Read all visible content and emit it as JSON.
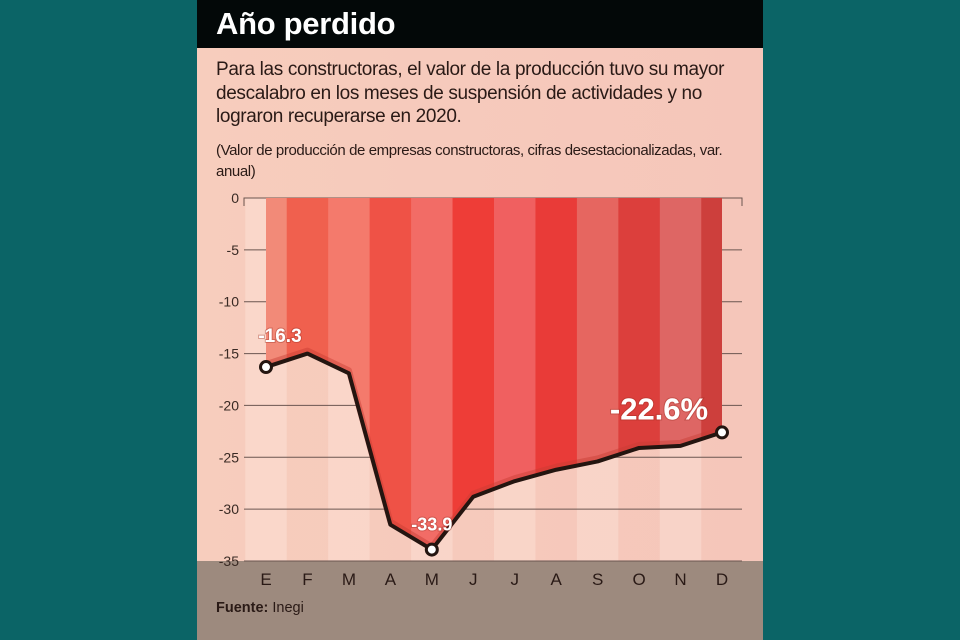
{
  "title": "Año perdido",
  "subtitle": "Para las constructoras, el valor de la producción tuvo su mayor descalabro en los meses de suspensión de actividades y no lograron recuperarse en 2020.",
  "note": "(Valor de producción de empresas constructoras, cifras desestacionalizadas, var. anual)",
  "source": {
    "label": "Fuente:",
    "value": "Inegi"
  },
  "colors": {
    "background": "#0b6466",
    "title_bar": "#030808",
    "line": "#241510",
    "area_red": "#ee3d37",
    "footer": "#9d8a7e"
  },
  "chart_data": {
    "type": "area",
    "title": "Año perdido",
    "xlabel": "",
    "ylabel": "",
    "categories": [
      "E",
      "F",
      "M",
      "A",
      "M",
      "J",
      "J",
      "A",
      "S",
      "O",
      "N",
      "D"
    ],
    "series": [
      {
        "name": "Valor de producción, var. anual (%)",
        "values": [
          -16.3,
          -15.0,
          -16.9,
          -31.5,
          -33.9,
          -28.8,
          -27.3,
          -26.2,
          -25.4,
          -24.1,
          -23.9,
          -22.6
        ]
      }
    ],
    "ylim": [
      -35,
      0
    ],
    "yticks": [
      0,
      -5,
      -10,
      -15,
      -20,
      -25,
      -30,
      -35
    ],
    "grid": true,
    "annotations": [
      {
        "index": 0,
        "text": "-16.3"
      },
      {
        "index": 4,
        "text": "-33.9"
      },
      {
        "index": 11,
        "text": "-22.6%"
      }
    ],
    "band_colors": [
      "#f28a78",
      "#f0604e",
      "#f47a6c",
      "#ef5246",
      "#f26c66",
      "#ee3d37",
      "#f06060",
      "#e93b38",
      "#e66660",
      "#dc3f3c",
      "#de6664",
      "#cd3f3c"
    ]
  }
}
